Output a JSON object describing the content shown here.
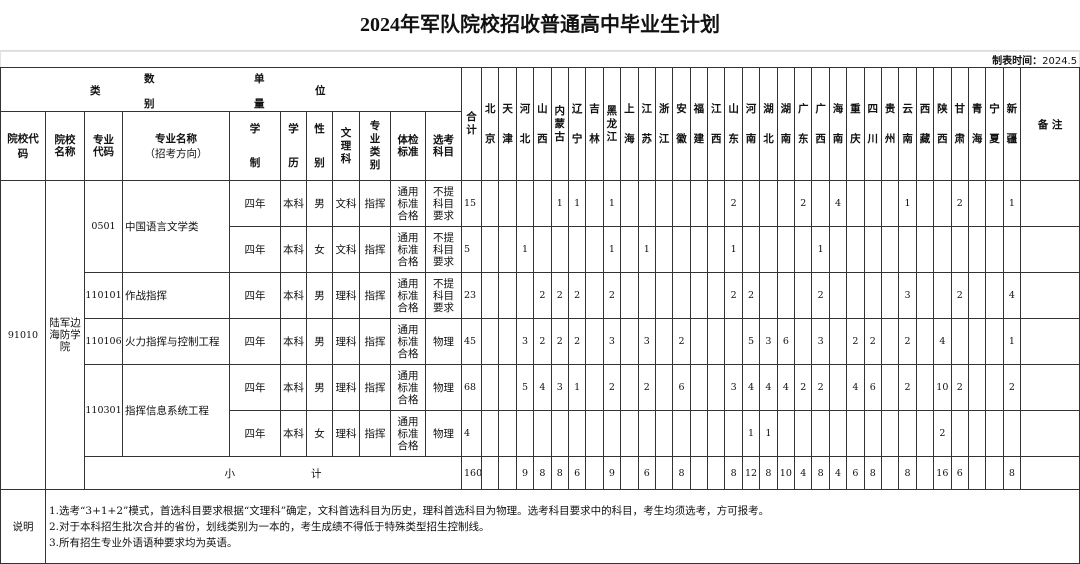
{
  "title": "2024年军队院校招收普通高中毕业生计划",
  "meta": {
    "date_label": "制表时间：",
    "date_value": "2024.5"
  },
  "header": {
    "cat_chars": {
      "shu": "数",
      "dan": "单",
      "lei": "类",
      "wei": "位",
      "bie": "别",
      "liang": "量"
    },
    "school_code": "院校代码",
    "school_name": "院校名称",
    "major_code": "专业代码",
    "major_name": "专业名称",
    "major_direction": "（招考方向）",
    "duration": "学制",
    "education": "学历",
    "gender": "性别",
    "arts_science": "文理科",
    "major_type": "专业类别",
    "physical": "体检标准",
    "elective": "选考科目",
    "total": "合计",
    "remark": "备 注"
  },
  "provinces": [
    "北京",
    "天津",
    "河北",
    "山西",
    "内蒙古",
    "辽宁",
    "吉林",
    "黑龙江",
    "上海",
    "江苏",
    "浙江",
    "安徽",
    "福建",
    "江西",
    "山东",
    "河南",
    "湖北",
    "湖南",
    "广东",
    "广西",
    "海南",
    "重庆",
    "四川",
    "贵州",
    "云南",
    "西藏",
    "陕西",
    "甘肃",
    "青海",
    "宁夏",
    "新疆"
  ],
  "school": {
    "code": "91010",
    "name": "陆军边海防学院"
  },
  "majors": [
    {
      "code": "0501",
      "name": "中国语言文学类",
      "rows": [
        {
          "duration": "四年",
          "education": "本科",
          "gender": "男",
          "arts_science": "文科",
          "type": "指挥",
          "physical": "通用标准合格",
          "elective": "不提科目要求",
          "total": "15",
          "values": [
            "",
            "",
            "",
            "",
            "1",
            "1",
            "",
            "1",
            "",
            "",
            "",
            "",
            "",
            "",
            "2",
            "",
            "",
            "",
            "2",
            "",
            "4",
            "",
            "",
            "",
            "1",
            "",
            "",
            "2",
            "",
            "",
            "1"
          ]
        },
        {
          "duration": "四年",
          "education": "本科",
          "gender": "女",
          "arts_science": "文科",
          "type": "指挥",
          "physical": "通用标准合格",
          "elective": "不提科目要求",
          "total": "5",
          "values": [
            "",
            "",
            "1",
            "",
            "",
            "",
            "",
            "1",
            "",
            "1",
            "",
            "",
            "",
            "",
            "1",
            "",
            "",
            "",
            "",
            "1",
            "",
            "",
            "",
            "",
            "",
            "",
            "",
            "",
            "",
            "",
            ""
          ]
        }
      ]
    },
    {
      "code": "110101",
      "name": "作战指挥",
      "rows": [
        {
          "duration": "四年",
          "education": "本科",
          "gender": "男",
          "arts_science": "理科",
          "type": "指挥",
          "physical": "通用标准合格",
          "elective": "不提科目要求",
          "total": "23",
          "values": [
            "",
            "",
            "",
            "2",
            "2",
            "2",
            "",
            "2",
            "",
            "",
            "",
            "",
            "",
            "",
            "2",
            "2",
            "",
            "",
            "",
            "2",
            "",
            "",
            "",
            "",
            "3",
            "",
            "",
            "2",
            "",
            "",
            "4"
          ]
        }
      ]
    },
    {
      "code": "110106",
      "name": "火力指挥与控制工程",
      "rows": [
        {
          "duration": "四年",
          "education": "本科",
          "gender": "男",
          "arts_science": "理科",
          "type": "指挥",
          "physical": "通用标准合格",
          "elective": "物理",
          "total": "45",
          "values": [
            "",
            "",
            "3",
            "2",
            "2",
            "2",
            "",
            "3",
            "",
            "3",
            "",
            "2",
            "",
            "",
            "",
            "5",
            "3",
            "6",
            "",
            "3",
            "",
            "2",
            "2",
            "",
            "2",
            "",
            "4",
            "",
            "",
            "",
            "1"
          ]
        }
      ]
    },
    {
      "code": "110301",
      "name": "指挥信息系统工程",
      "rows": [
        {
          "duration": "四年",
          "education": "本科",
          "gender": "男",
          "arts_science": "理科",
          "type": "指挥",
          "physical": "通用标准合格",
          "elective": "物理",
          "total": "68",
          "values": [
            "",
            "",
            "5",
            "4",
            "3",
            "1",
            "",
            "2",
            "",
            "2",
            "",
            "6",
            "",
            "",
            "3",
            "4",
            "4",
            "4",
            "2",
            "2",
            "",
            "4",
            "6",
            "",
            "2",
            "",
            "10",
            "2",
            "",
            "",
            "2"
          ]
        },
        {
          "duration": "四年",
          "education": "本科",
          "gender": "女",
          "arts_science": "理科",
          "type": "指挥",
          "physical": "通用标准合格",
          "elective": "物理",
          "total": "4",
          "values": [
            "",
            "",
            "",
            "",
            "",
            "",
            "",
            "",
            "",
            "",
            "",
            "",
            "",
            "",
            "",
            "1",
            "1",
            "",
            "",
            "",
            "",
            "",
            "",
            "",
            "",
            "",
            "2",
            "",
            "",
            "",
            ""
          ]
        }
      ]
    }
  ],
  "subtotal": {
    "label_a": "小",
    "label_b": "计",
    "total": "160",
    "values": [
      "",
      "",
      "9",
      "8",
      "8",
      "6",
      "",
      "9",
      "",
      "6",
      "",
      "8",
      "",
      "",
      "8",
      "12",
      "8",
      "10",
      "4",
      "8",
      "4",
      "6",
      "8",
      "",
      "8",
      "",
      "16",
      "6",
      "",
      "",
      "8"
    ]
  },
  "notes": {
    "label": "说明",
    "items": [
      "1.选考“3+1+2”模式，首选科目要求根据“文理科”确定，文科首选科目为历史，理科首选科目为物理。选考科目要求中的科目，考生均须选考，方可报考。",
      "2.对于本科招生批次合并的省份，划线类别为一本的，考生成绩不得低于特殊类型招生控制线。",
      "3.所有招生专业外语语种要求均为英语。"
    ]
  }
}
